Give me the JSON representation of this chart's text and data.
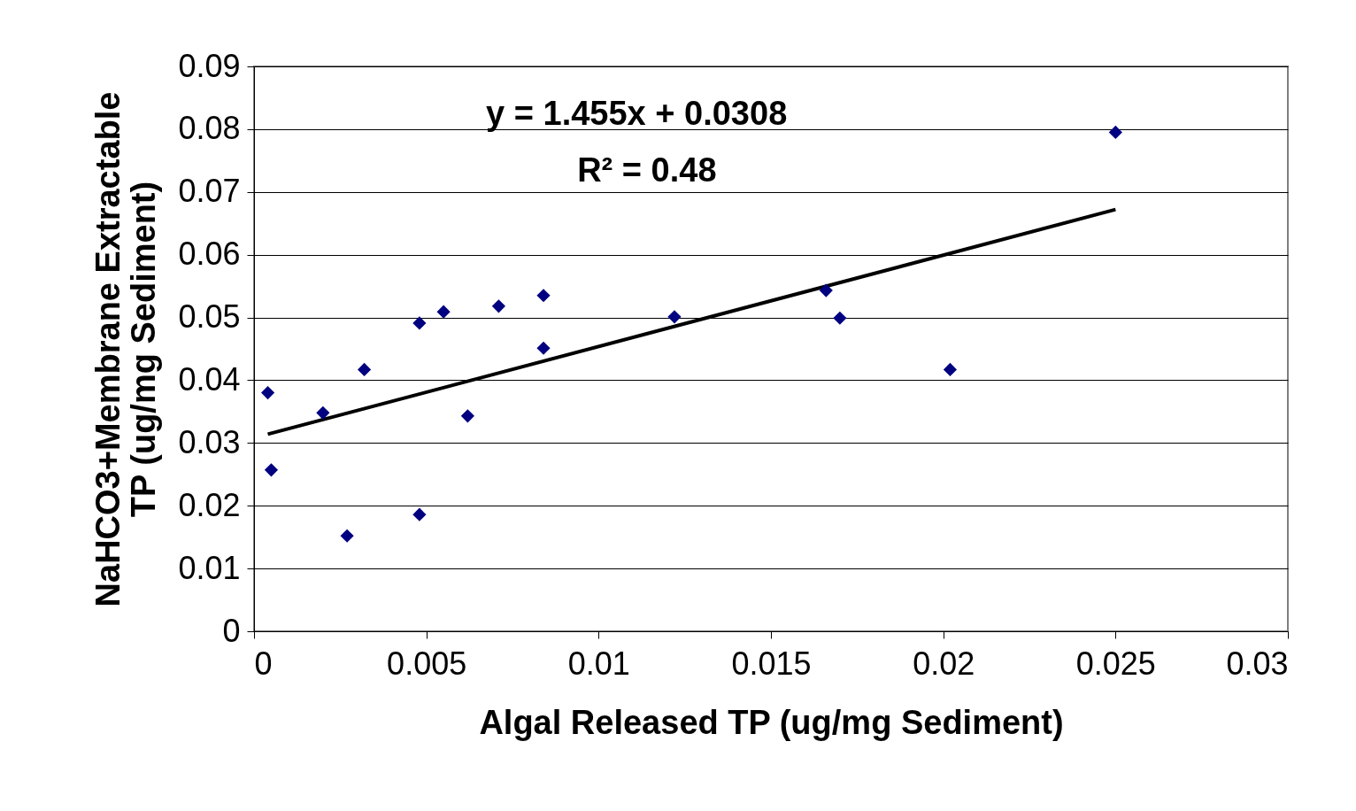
{
  "chart_data": {
    "type": "scatter",
    "xlabel": "Algal Released TP (ug/mg Sediment)",
    "ylabel": "NaHCO3+Membrane Extractable TP (ug/mg Sediment)",
    "annotations": [
      "y = 1.455x + 0.0308",
      "R² = 0.48"
    ],
    "series": [
      {
        "marker": "diamond",
        "color": "#000080",
        "x": [
          0.0004,
          0.0005,
          0.002,
          0.0027,
          0.0032,
          0.0048,
          0.0048,
          0.0055,
          0.0062,
          0.0071,
          0.0084,
          0.0084,
          0.0122,
          0.0166,
          0.017,
          0.0202,
          0.025
        ],
        "values": [
          0.038,
          0.0257,
          0.0348,
          0.0152,
          0.0417,
          0.0491,
          0.0186,
          0.0509,
          0.0343,
          0.0518,
          0.0535,
          0.0451,
          0.0501,
          0.0543,
          0.0499,
          0.0417,
          0.0795
        ]
      },
      {
        "type": "line",
        "marker": "none",
        "color": "#000000",
        "x": [
          0.0004,
          0.025
        ],
        "values": [
          0.0314,
          0.0672
        ]
      }
    ],
    "xlim": [
      0,
      0.03
    ],
    "xticks": [
      0,
      0.005,
      0.01,
      0.015,
      0.02,
      0.025,
      0.03
    ],
    "ylim": [
      0,
      0.09
    ],
    "yticks": [
      0,
      0.01,
      0.02,
      0.03,
      0.04,
      0.05,
      0.06,
      0.07,
      0.08,
      0.09
    ],
    "grid": "y"
  }
}
